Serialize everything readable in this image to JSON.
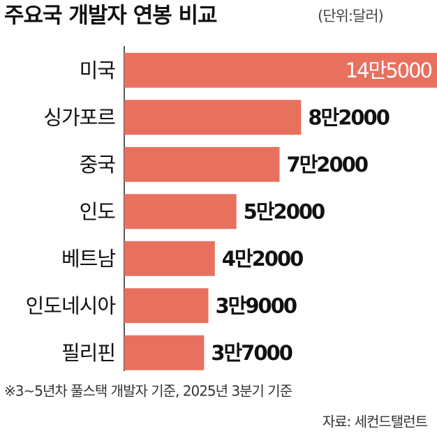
{
  "chart_data": {
    "type": "bar",
    "orientation": "horizontal",
    "title": "주요국 개발자 연봉 비교",
    "subtitle": "(단위:달러)",
    "categories": [
      "미국",
      "싱가포르",
      "중국",
      "인도",
      "베트남",
      "인도네시아",
      "필리핀"
    ],
    "values": [
      145000,
      82000,
      72000,
      52000,
      42000,
      39000,
      37000
    ],
    "value_labels": [
      "14만5000",
      "8만2000",
      "7만2000",
      "5만2000",
      "4만2000",
      "3만9000",
      "3만7000"
    ],
    "color": "#e8705f",
    "xlim": [
      0,
      145000
    ],
    "grid": false,
    "footnote": "※3~5년차 풀스택 개발자 기준, 2025년 3분기 기준",
    "source": "자료: 세컨드탤런트"
  }
}
